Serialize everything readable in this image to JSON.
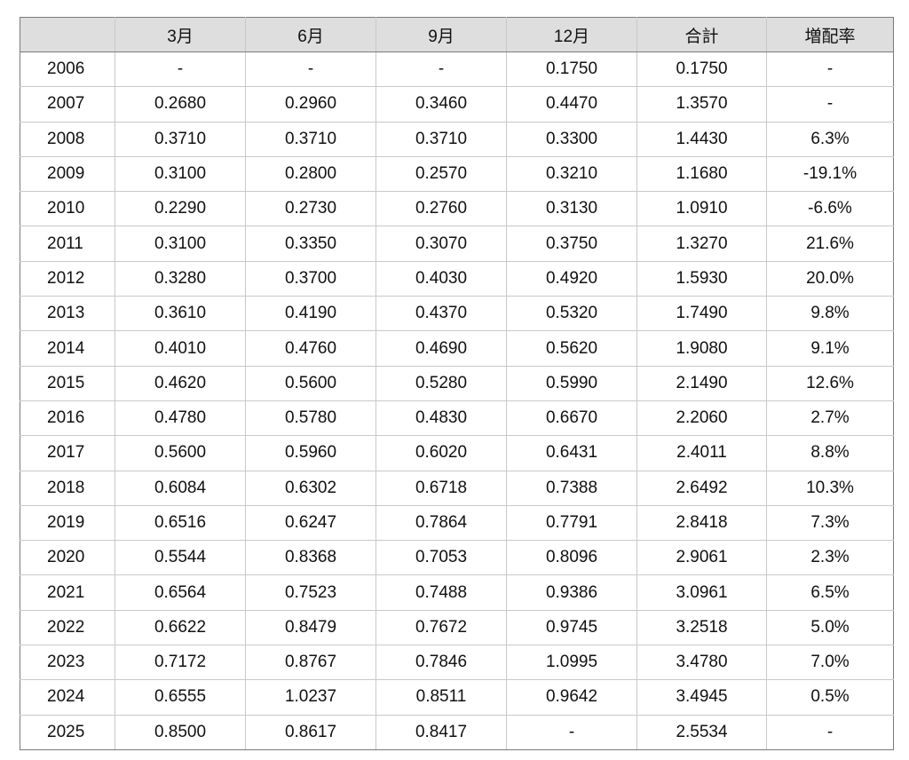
{
  "table": {
    "headers": [
      "",
      "3月",
      "6月",
      "9月",
      "12月",
      "合計",
      "増配率"
    ],
    "rows": [
      [
        "2006",
        "-",
        "-",
        "-",
        "0.1750",
        "0.1750",
        "-"
      ],
      [
        "2007",
        "0.2680",
        "0.2960",
        "0.3460",
        "0.4470",
        "1.3570",
        "-"
      ],
      [
        "2008",
        "0.3710",
        "0.3710",
        "0.3710",
        "0.3300",
        "1.4430",
        "6.3%"
      ],
      [
        "2009",
        "0.3100",
        "0.2800",
        "0.2570",
        "0.3210",
        "1.1680",
        "-19.1%"
      ],
      [
        "2010",
        "0.2290",
        "0.2730",
        "0.2760",
        "0.3130",
        "1.0910",
        "-6.6%"
      ],
      [
        "2011",
        "0.3100",
        "0.3350",
        "0.3070",
        "0.3750",
        "1.3270",
        "21.6%"
      ],
      [
        "2012",
        "0.3280",
        "0.3700",
        "0.4030",
        "0.4920",
        "1.5930",
        "20.0%"
      ],
      [
        "2013",
        "0.3610",
        "0.4190",
        "0.4370",
        "0.5320",
        "1.7490",
        "9.8%"
      ],
      [
        "2014",
        "0.4010",
        "0.4760",
        "0.4690",
        "0.5620",
        "1.9080",
        "9.1%"
      ],
      [
        "2015",
        "0.4620",
        "0.5600",
        "0.5280",
        "0.5990",
        "2.1490",
        "12.6%"
      ],
      [
        "2016",
        "0.4780",
        "0.5780",
        "0.4830",
        "0.6670",
        "2.2060",
        "2.7%"
      ],
      [
        "2017",
        "0.5600",
        "0.5960",
        "0.6020",
        "0.6431",
        "2.4011",
        "8.8%"
      ],
      [
        "2018",
        "0.6084",
        "0.6302",
        "0.6718",
        "0.7388",
        "2.6492",
        "10.3%"
      ],
      [
        "2019",
        "0.6516",
        "0.6247",
        "0.7864",
        "0.7791",
        "2.8418",
        "7.3%"
      ],
      [
        "2020",
        "0.5544",
        "0.8368",
        "0.7053",
        "0.8096",
        "2.9061",
        "2.3%"
      ],
      [
        "2021",
        "0.6564",
        "0.7523",
        "0.7488",
        "0.9386",
        "3.0961",
        "6.5%"
      ],
      [
        "2022",
        "0.6622",
        "0.8479",
        "0.7672",
        "0.9745",
        "3.2518",
        "5.0%"
      ],
      [
        "2023",
        "0.7172",
        "0.8767",
        "0.7846",
        "1.0995",
        "3.4780",
        "7.0%"
      ],
      [
        "2024",
        "0.6555",
        "1.0237",
        "0.8511",
        "0.9642",
        "3.4945",
        "0.5%"
      ],
      [
        "2025",
        "0.8500",
        "0.8617",
        "0.8417",
        "-",
        "2.5534",
        "-"
      ]
    ]
  }
}
